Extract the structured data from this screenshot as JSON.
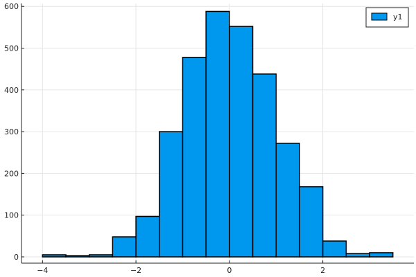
{
  "chart_data": {
    "type": "bar",
    "title": "",
    "xlabel": "",
    "ylabel": "",
    "xlim": [
      -4.45,
      3.95
    ],
    "ylim": [
      -15,
      607
    ],
    "bin_edges": [
      -4.0,
      -3.5,
      -3.0,
      -2.5,
      -2.0,
      -1.5,
      -1.0,
      -0.5,
      0.0,
      0.5,
      1.0,
      1.5,
      2.0,
      2.5,
      3.0,
      3.5
    ],
    "series": [
      {
        "name": "y1",
        "color": "#0097ef",
        "values": [
          5,
          3,
          5,
          48,
          97,
          300,
          478,
          588,
          552,
          438,
          272,
          168,
          38,
          8,
          10
        ]
      }
    ],
    "x_ticks": [
      {
        "value": -4,
        "label": "−4"
      },
      {
        "value": -2,
        "label": "−2"
      },
      {
        "value": 0,
        "label": "0"
      },
      {
        "value": 2,
        "label": "2"
      }
    ],
    "y_ticks": [
      {
        "value": 0,
        "label": "0"
      },
      {
        "value": 100,
        "label": "100"
      },
      {
        "value": 200,
        "label": "200"
      },
      {
        "value": 300,
        "label": "300"
      },
      {
        "value": 400,
        "label": "400"
      },
      {
        "value": 500,
        "label": "500"
      },
      {
        "value": 600,
        "label": "600"
      }
    ],
    "grid": true,
    "legend_position": "top-right"
  }
}
